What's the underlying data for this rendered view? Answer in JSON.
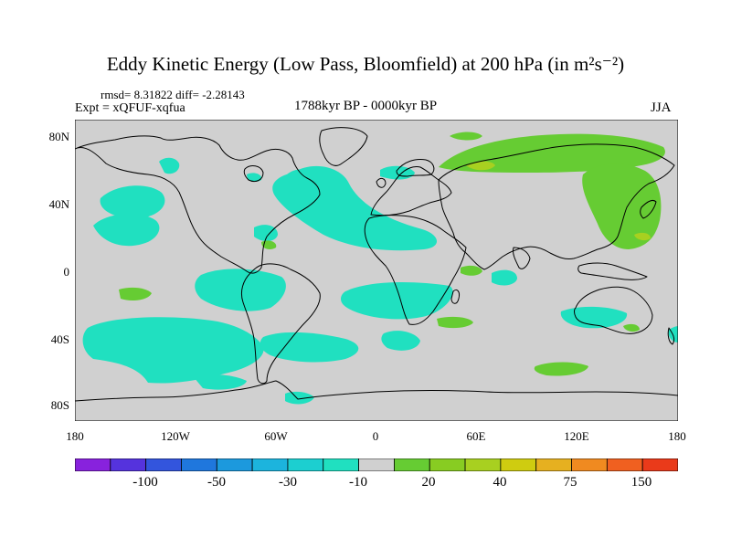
{
  "title": "Eddy Kinetic Energy (Low Pass, Bloomfield) at 200 hPa (in m²s⁻²)",
  "stats": "rmsd= 8.31822  diff= -2.28143",
  "experiment": "Expt = xQFUF-xqfua",
  "period": "1788kyr BP - 0000kyr BP",
  "season": "JJA",
  "lat_labels": [
    "80N",
    "40N",
    "0",
    "40S",
    "80S"
  ],
  "lon_labels": [
    "180",
    "120W",
    "60W",
    "0",
    "60E",
    "120E",
    "180"
  ],
  "colors": {
    "background": "#d0d0d0",
    "negative_patch": "#20e0c0",
    "positive_patch": "#66cc33",
    "positive_strong": "#a8d020",
    "coast": "#000000"
  },
  "colorbar": {
    "colors": [
      "#8822dd",
      "#5533dd",
      "#3355dd",
      "#1f77dd",
      "#1c99dd",
      "#1cb4dd",
      "#1ccfd0",
      "#20e0c0",
      "#d0d0d0",
      "#66cc33",
      "#88cc22",
      "#a8d020",
      "#cfcc10",
      "#e6b020",
      "#f08a20",
      "#f06020",
      "#ea3a1a"
    ],
    "labels": [
      "-100",
      "-50",
      "-30",
      "-10",
      "20",
      "40",
      "75",
      "150"
    ]
  }
}
